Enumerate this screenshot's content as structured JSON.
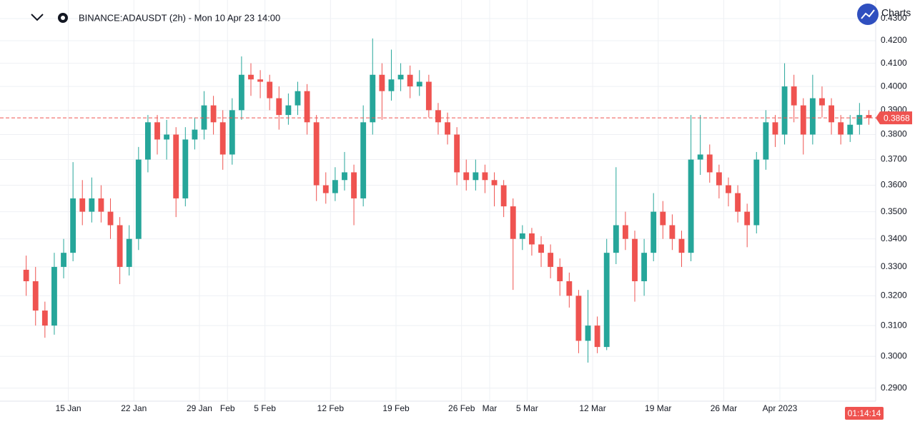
{
  "chart_data": {
    "type": "candlestick",
    "title": "BINANCE:ADAUSDT (2h) - Mon 10 Apr 23 14:00",
    "logo_text": "Charts",
    "countdown": "01:14:14",
    "last_price": 0.3868,
    "log_scale": true,
    "grid": true,
    "up_color": "#26a69a",
    "down_color": "#ef5350",
    "xlim": [
      "2023-01-09",
      "2023-04-11"
    ],
    "ylim": [
      0.286,
      0.4386
    ],
    "xticks": [
      {
        "value": "2023-01-15",
        "label": "15 Jan"
      },
      {
        "value": "2023-01-22",
        "label": "22 Jan"
      },
      {
        "value": "2023-01-29",
        "label": "29 Jan"
      },
      {
        "value": "2023-02-01",
        "label": "Feb"
      },
      {
        "value": "2023-02-05",
        "label": "5 Feb"
      },
      {
        "value": "2023-02-12",
        "label": "12 Feb"
      },
      {
        "value": "2023-02-19",
        "label": "19 Feb"
      },
      {
        "value": "2023-02-26",
        "label": "26 Feb"
      },
      {
        "value": "2023-03-01",
        "label": "Mar"
      },
      {
        "value": "2023-03-05",
        "label": "5 Mar"
      },
      {
        "value": "2023-03-12",
        "label": "12 Mar"
      },
      {
        "value": "2023-03-19",
        "label": "19 Mar"
      },
      {
        "value": "2023-03-26",
        "label": "26 Mar"
      },
      {
        "value": "2023-04-01",
        "label": "Apr 2023"
      }
    ],
    "yticks": [
      {
        "value": 0.29,
        "label": "0.2900"
      },
      {
        "value": 0.3,
        "label": "0.3000"
      },
      {
        "value": 0.31,
        "label": "0.3100"
      },
      {
        "value": 0.32,
        "label": "0.3200"
      },
      {
        "value": 0.33,
        "label": "0.3300"
      },
      {
        "value": 0.34,
        "label": "0.3400"
      },
      {
        "value": 0.35,
        "label": "0.3500"
      },
      {
        "value": 0.36,
        "label": "0.3600"
      },
      {
        "value": 0.37,
        "label": "0.3700"
      },
      {
        "value": 0.38,
        "label": "0.3800"
      },
      {
        "value": 0.39,
        "label": "0.3900"
      },
      {
        "value": 0.4,
        "label": "0.4000"
      },
      {
        "value": 0.41,
        "label": "0.4100"
      },
      {
        "value": 0.42,
        "label": "0.4200"
      },
      {
        "value": 0.43,
        "label": "0.4300"
      }
    ],
    "x": [
      "2023-01-10",
      "2023-01-11",
      "2023-01-12",
      "2023-01-13",
      "2023-01-14",
      "2023-01-15",
      "2023-01-16",
      "2023-01-17",
      "2023-01-18",
      "2023-01-19",
      "2023-01-20",
      "2023-01-21",
      "2023-01-22",
      "2023-01-23",
      "2023-01-24",
      "2023-01-25",
      "2023-01-26",
      "2023-01-27",
      "2023-01-28",
      "2023-01-29",
      "2023-01-30",
      "2023-01-31",
      "2023-02-01",
      "2023-02-02",
      "2023-02-03",
      "2023-02-04",
      "2023-02-05",
      "2023-02-06",
      "2023-02-07",
      "2023-02-08",
      "2023-02-09",
      "2023-02-10",
      "2023-02-11",
      "2023-02-12",
      "2023-02-13",
      "2023-02-14",
      "2023-02-15",
      "2023-02-16",
      "2023-02-17",
      "2023-02-18",
      "2023-02-19",
      "2023-02-20",
      "2023-02-21",
      "2023-02-22",
      "2023-02-23",
      "2023-02-24",
      "2023-02-25",
      "2023-02-26",
      "2023-02-27",
      "2023-02-28",
      "2023-03-01",
      "2023-03-02",
      "2023-03-03",
      "2023-03-04",
      "2023-03-05",
      "2023-03-06",
      "2023-03-07",
      "2023-03-08",
      "2023-03-09",
      "2023-03-10",
      "2023-03-11",
      "2023-03-12",
      "2023-03-13",
      "2023-03-14",
      "2023-03-15",
      "2023-03-16",
      "2023-03-17",
      "2023-03-18",
      "2023-03-19",
      "2023-03-20",
      "2023-03-21",
      "2023-03-22",
      "2023-03-23",
      "2023-03-24",
      "2023-03-25",
      "2023-03-26",
      "2023-03-27",
      "2023-03-28",
      "2023-03-29",
      "2023-03-30",
      "2023-03-31",
      "2023-04-01",
      "2023-04-02",
      "2023-04-03",
      "2023-04-04",
      "2023-04-05",
      "2023-04-06",
      "2023-04-07",
      "2023-04-08",
      "2023-04-09",
      "2023-04-10"
    ],
    "open": [
      0.329,
      0.325,
      0.315,
      0.31,
      0.33,
      0.335,
      0.355,
      0.35,
      0.355,
      0.35,
      0.345,
      0.33,
      0.34,
      0.37,
      0.385,
      0.378,
      0.38,
      0.355,
      0.378,
      0.382,
      0.392,
      0.385,
      0.372,
      0.39,
      0.405,
      0.403,
      0.402,
      0.395,
      0.388,
      0.392,
      0.398,
      0.385,
      0.36,
      0.357,
      0.362,
      0.365,
      0.355,
      0.385,
      0.405,
      0.398,
      0.403,
      0.405,
      0.4,
      0.402,
      0.39,
      0.385,
      0.38,
      0.365,
      0.362,
      0.365,
      0.362,
      0.36,
      0.352,
      0.34,
      0.342,
      0.338,
      0.335,
      0.33,
      0.325,
      0.32,
      0.305,
      0.31,
      0.303,
      0.335,
      0.345,
      0.34,
      0.325,
      0.335,
      0.35,
      0.345,
      0.34,
      0.335,
      0.37,
      0.372,
      0.365,
      0.36,
      0.357,
      0.35,
      0.345,
      0.37,
      0.385,
      0.38,
      0.4,
      0.392,
      0.38,
      0.395,
      0.392,
      0.385,
      0.38,
      0.384,
      0.388
    ],
    "high": [
      0.334,
      0.33,
      0.318,
      0.335,
      0.34,
      0.369,
      0.362,
      0.363,
      0.36,
      0.355,
      0.348,
      0.345,
      0.375,
      0.388,
      0.388,
      0.386,
      0.383,
      0.383,
      0.387,
      0.398,
      0.396,
      0.39,
      0.395,
      0.413,
      0.41,
      0.407,
      0.405,
      0.4,
      0.397,
      0.402,
      0.401,
      0.388,
      0.365,
      0.367,
      0.373,
      0.368,
      0.392,
      0.421,
      0.41,
      0.416,
      0.41,
      0.409,
      0.407,
      0.405,
      0.393,
      0.389,
      0.383,
      0.37,
      0.37,
      0.368,
      0.365,
      0.362,
      0.355,
      0.345,
      0.344,
      0.341,
      0.338,
      0.333,
      0.328,
      0.322,
      0.322,
      0.313,
      0.34,
      0.367,
      0.35,
      0.343,
      0.34,
      0.357,
      0.354,
      0.349,
      0.343,
      0.388,
      0.388,
      0.376,
      0.368,
      0.363,
      0.36,
      0.353,
      0.373,
      0.39,
      0.388,
      0.41,
      0.405,
      0.395,
      0.405,
      0.4,
      0.395,
      0.388,
      0.388,
      0.393,
      0.39
    ],
    "low": [
      0.32,
      0.31,
      0.306,
      0.307,
      0.326,
      0.332,
      0.345,
      0.346,
      0.346,
      0.34,
      0.324,
      0.327,
      0.336,
      0.365,
      0.372,
      0.37,
      0.348,
      0.352,
      0.374,
      0.378,
      0.38,
      0.366,
      0.368,
      0.386,
      0.396,
      0.395,
      0.39,
      0.382,
      0.384,
      0.388,
      0.38,
      0.354,
      0.353,
      0.354,
      0.358,
      0.345,
      0.352,
      0.38,
      0.386,
      0.394,
      0.398,
      0.395,
      0.396,
      0.387,
      0.38,
      0.376,
      0.36,
      0.358,
      0.358,
      0.357,
      0.352,
      0.348,
      0.322,
      0.336,
      0.334,
      0.33,
      0.326,
      0.32,
      0.316,
      0.301,
      0.298,
      0.301,
      0.302,
      0.331,
      0.336,
      0.318,
      0.32,
      0.332,
      0.34,
      0.336,
      0.33,
      0.332,
      0.364,
      0.361,
      0.355,
      0.352,
      0.346,
      0.337,
      0.342,
      0.366,
      0.375,
      0.376,
      0.385,
      0.372,
      0.376,
      0.387,
      0.38,
      0.376,
      0.377,
      0.38,
      0.384
    ],
    "close": [
      0.325,
      0.315,
      0.31,
      0.33,
      0.335,
      0.355,
      0.35,
      0.355,
      0.35,
      0.345,
      0.33,
      0.34,
      0.37,
      0.385,
      0.378,
      0.38,
      0.355,
      0.378,
      0.382,
      0.392,
      0.385,
      0.372,
      0.39,
      0.405,
      0.403,
      0.402,
      0.395,
      0.388,
      0.392,
      0.398,
      0.385,
      0.36,
      0.357,
      0.362,
      0.365,
      0.355,
      0.385,
      0.405,
      0.398,
      0.403,
      0.405,
      0.4,
      0.402,
      0.39,
      0.385,
      0.38,
      0.365,
      0.362,
      0.365,
      0.362,
      0.36,
      0.352,
      0.34,
      0.342,
      0.338,
      0.335,
      0.33,
      0.325,
      0.32,
      0.305,
      0.31,
      0.303,
      0.335,
      0.345,
      0.34,
      0.325,
      0.335,
      0.35,
      0.345,
      0.34,
      0.335,
      0.37,
      0.372,
      0.365,
      0.36,
      0.357,
      0.35,
      0.345,
      0.37,
      0.385,
      0.38,
      0.4,
      0.392,
      0.38,
      0.395,
      0.392,
      0.385,
      0.38,
      0.384,
      0.388,
      0.3868
    ]
  }
}
